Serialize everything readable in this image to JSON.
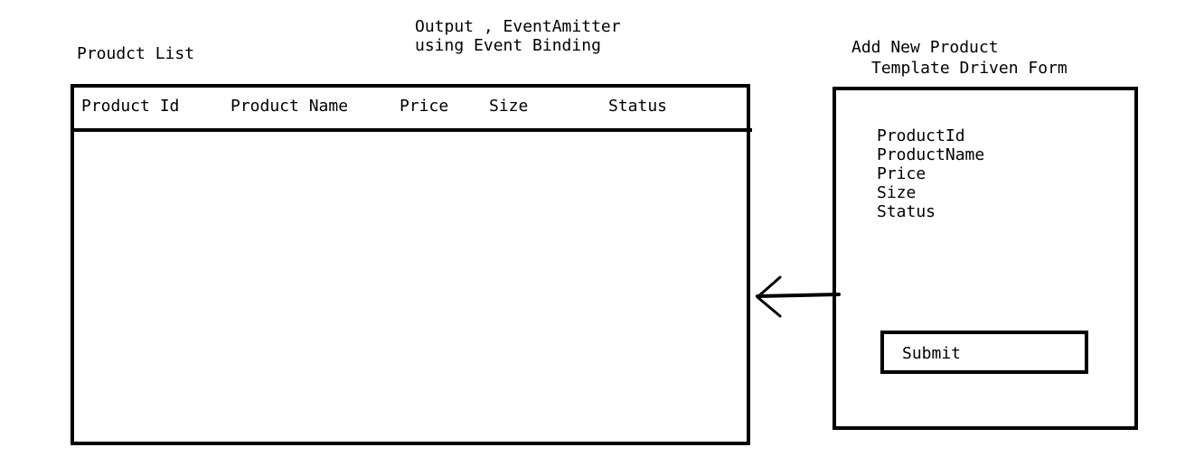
{
  "product_list": {
    "title": "Proudct List",
    "columns": [
      "Product Id",
      "Product Name",
      "Price",
      "Size",
      "Status"
    ]
  },
  "output_note": {
    "line1": "Output , EventAmitter",
    "line2": "using Event Binding"
  },
  "add_form": {
    "title": "Add New Product",
    "subtitle": "Template Driven Form",
    "fields": [
      "ProductId",
      "ProductName",
      "Price",
      "Size",
      "Status"
    ],
    "submit_label": "Submit"
  }
}
